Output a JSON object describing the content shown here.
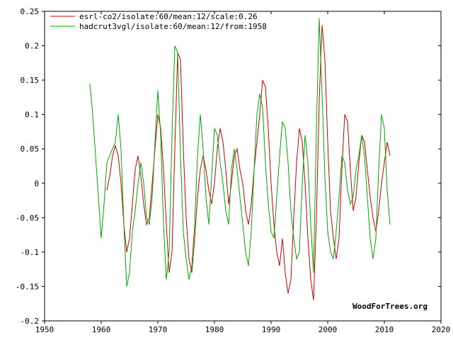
{
  "chart_data": {
    "type": "line",
    "xlim": [
      1950,
      2020
    ],
    "ylim": [
      -0.2,
      0.25
    ],
    "x_ticks": [
      1950,
      1960,
      1970,
      1980,
      1990,
      2000,
      2010,
      2020
    ],
    "x_tick_labels": [
      "1950",
      "1960",
      "1970",
      "1980",
      "1990",
      "2000",
      "2010",
      "2020"
    ],
    "y_ticks": [
      -0.2,
      -0.15,
      -0.1,
      -0.05,
      0,
      0.05,
      0.1,
      0.15,
      0.2,
      0.25
    ],
    "y_tick_labels": [
      "-0.2",
      "-0.15",
      "-0.1",
      "-0.05",
      "0",
      "0.05",
      "0.1",
      "0.15",
      "0.2",
      "0.25"
    ],
    "grid": false,
    "legend_position": "top-left",
    "watermark": "WoodForTrees.org",
    "series": [
      {
        "name": "esrl-co2/isolate:60/mean:12/scale:0.26",
        "color": "#cc0000",
        "x": [
          1961.0,
          1961.5,
          1962.0,
          1962.5,
          1963.0,
          1963.5,
          1964.0,
          1964.5,
          1965.0,
          1965.5,
          1966.0,
          1966.5,
          1967.0,
          1967.5,
          1968.0,
          1968.5,
          1969.0,
          1969.5,
          1970.0,
          1970.5,
          1971.0,
          1971.5,
          1972.0,
          1972.5,
          1973.0,
          1973.5,
          1974.0,
          1974.5,
          1975.0,
          1975.5,
          1976.0,
          1976.5,
          1977.0,
          1977.5,
          1978.0,
          1978.5,
          1979.0,
          1979.5,
          1980.0,
          1980.5,
          1981.0,
          1981.5,
          1982.0,
          1982.5,
          1983.0,
          1983.5,
          1984.0,
          1984.5,
          1985.0,
          1985.5,
          1986.0,
          1986.5,
          1987.0,
          1987.5,
          1988.0,
          1988.5,
          1989.0,
          1989.5,
          1990.0,
          1990.5,
          1991.0,
          1991.5,
          1992.0,
          1992.5,
          1993.0,
          1993.5,
          1994.0,
          1994.5,
          1995.0,
          1995.5,
          1996.0,
          1996.5,
          1997.0,
          1997.5,
          1998.0,
          1998.5,
          1999.0,
          1999.5,
          2000.0,
          2000.5,
          2001.0,
          2001.5,
          2002.0,
          2002.5,
          2003.0,
          2003.5,
          2004.0,
          2004.5,
          2005.0,
          2005.5,
          2006.0,
          2006.5,
          2007.0,
          2007.5,
          2008.0,
          2008.5,
          2009.0,
          2009.5,
          2010.0,
          2010.5,
          2011.0
        ],
        "y": [
          -0.01,
          0.01,
          0.04,
          0.055,
          0.04,
          0.0,
          -0.06,
          -0.1,
          -0.08,
          -0.03,
          0.02,
          0.04,
          0.01,
          -0.03,
          -0.06,
          -0.05,
          0.0,
          0.05,
          0.1,
          0.08,
          0.02,
          -0.06,
          -0.13,
          -0.1,
          0.05,
          0.19,
          0.18,
          0.05,
          -0.05,
          -0.11,
          -0.13,
          -0.08,
          -0.02,
          0.02,
          0.04,
          0.02,
          -0.01,
          -0.03,
          0.0,
          0.05,
          0.08,
          0.06,
          0.02,
          -0.03,
          0.0,
          0.04,
          0.05,
          0.02,
          0.0,
          -0.04,
          -0.06,
          -0.03,
          0.02,
          0.06,
          0.1,
          0.15,
          0.14,
          0.08,
          0.0,
          -0.06,
          -0.1,
          -0.12,
          -0.08,
          -0.13,
          -0.16,
          -0.14,
          -0.05,
          0.03,
          0.08,
          0.06,
          0.0,
          -0.08,
          -0.14,
          -0.17,
          -0.05,
          0.12,
          0.23,
          0.18,
          0.06,
          -0.04,
          -0.08,
          -0.11,
          -0.08,
          0.02,
          0.1,
          0.09,
          0.02,
          -0.04,
          -0.02,
          0.03,
          0.07,
          0.06,
          0.02,
          -0.02,
          -0.05,
          -0.07,
          -0.04,
          0.0,
          0.03,
          0.06,
          0.04
        ]
      },
      {
        "name": "hadcrut3vgl/isolate:60/mean:12/from:1958",
        "color": "#00aa00",
        "x": [
          1958.0,
          1958.5,
          1959.0,
          1959.5,
          1960.0,
          1960.5,
          1961.0,
          1961.5,
          1962.0,
          1962.5,
          1963.0,
          1963.5,
          1964.0,
          1964.5,
          1965.0,
          1965.5,
          1966.0,
          1966.5,
          1967.0,
          1967.5,
          1968.0,
          1968.5,
          1969.0,
          1969.5,
          1970.0,
          1970.5,
          1971.0,
          1971.5,
          1972.0,
          1972.5,
          1973.0,
          1973.5,
          1974.0,
          1974.5,
          1975.0,
          1975.5,
          1976.0,
          1976.5,
          1977.0,
          1977.5,
          1978.0,
          1978.5,
          1979.0,
          1979.5,
          1980.0,
          1980.5,
          1981.0,
          1981.5,
          1982.0,
          1982.5,
          1983.0,
          1983.5,
          1984.0,
          1984.5,
          1985.0,
          1985.5,
          1986.0,
          1986.5,
          1987.0,
          1987.5,
          1988.0,
          1988.5,
          1989.0,
          1989.5,
          1990.0,
          1990.5,
          1991.0,
          1991.5,
          1992.0,
          1992.5,
          1993.0,
          1993.5,
          1994.0,
          1994.5,
          1995.0,
          1995.5,
          1996.0,
          1996.5,
          1997.0,
          1997.5,
          1998.0,
          1998.5,
          1999.0,
          1999.5,
          2000.0,
          2000.5,
          2001.0,
          2001.5,
          2002.0,
          2002.5,
          2003.0,
          2003.5,
          2004.0,
          2004.5,
          2005.0,
          2005.5,
          2006.0,
          2006.5,
          2007.0,
          2007.5,
          2008.0,
          2008.5,
          2009.0,
          2009.5,
          2010.0,
          2010.5,
          2011.0
        ],
        "y": [
          0.145,
          0.1,
          0.04,
          -0.02,
          -0.08,
          -0.03,
          0.03,
          0.04,
          0.05,
          0.06,
          0.1,
          0.05,
          -0.06,
          -0.15,
          -0.13,
          -0.07,
          -0.04,
          0.0,
          0.03,
          0.0,
          -0.05,
          -0.06,
          -0.02,
          0.06,
          0.135,
          0.07,
          -0.06,
          -0.14,
          -0.1,
          0.07,
          0.2,
          0.19,
          0.04,
          -0.07,
          -0.11,
          -0.14,
          -0.12,
          -0.06,
          0.04,
          0.1,
          0.05,
          -0.02,
          -0.06,
          0.01,
          0.08,
          0.07,
          0.03,
          0.0,
          -0.04,
          -0.06,
          0.02,
          0.05,
          0.02,
          -0.02,
          -0.06,
          -0.1,
          -0.12,
          -0.07,
          0.02,
          0.1,
          0.13,
          0.11,
          0.03,
          -0.03,
          -0.07,
          -0.08,
          -0.02,
          0.04,
          0.09,
          0.08,
          0.03,
          -0.04,
          -0.08,
          -0.11,
          -0.1,
          0.0,
          0.07,
          0.03,
          -0.06,
          -0.13,
          0.08,
          0.24,
          0.13,
          0.01,
          -0.07,
          -0.1,
          -0.11,
          -0.07,
          -0.02,
          0.04,
          0.03,
          -0.01,
          -0.03,
          -0.02,
          0.02,
          0.04,
          0.07,
          0.04,
          -0.02,
          -0.08,
          -0.11,
          -0.08,
          0.02,
          0.1,
          0.08,
          -0.01,
          -0.06
        ]
      }
    ]
  }
}
